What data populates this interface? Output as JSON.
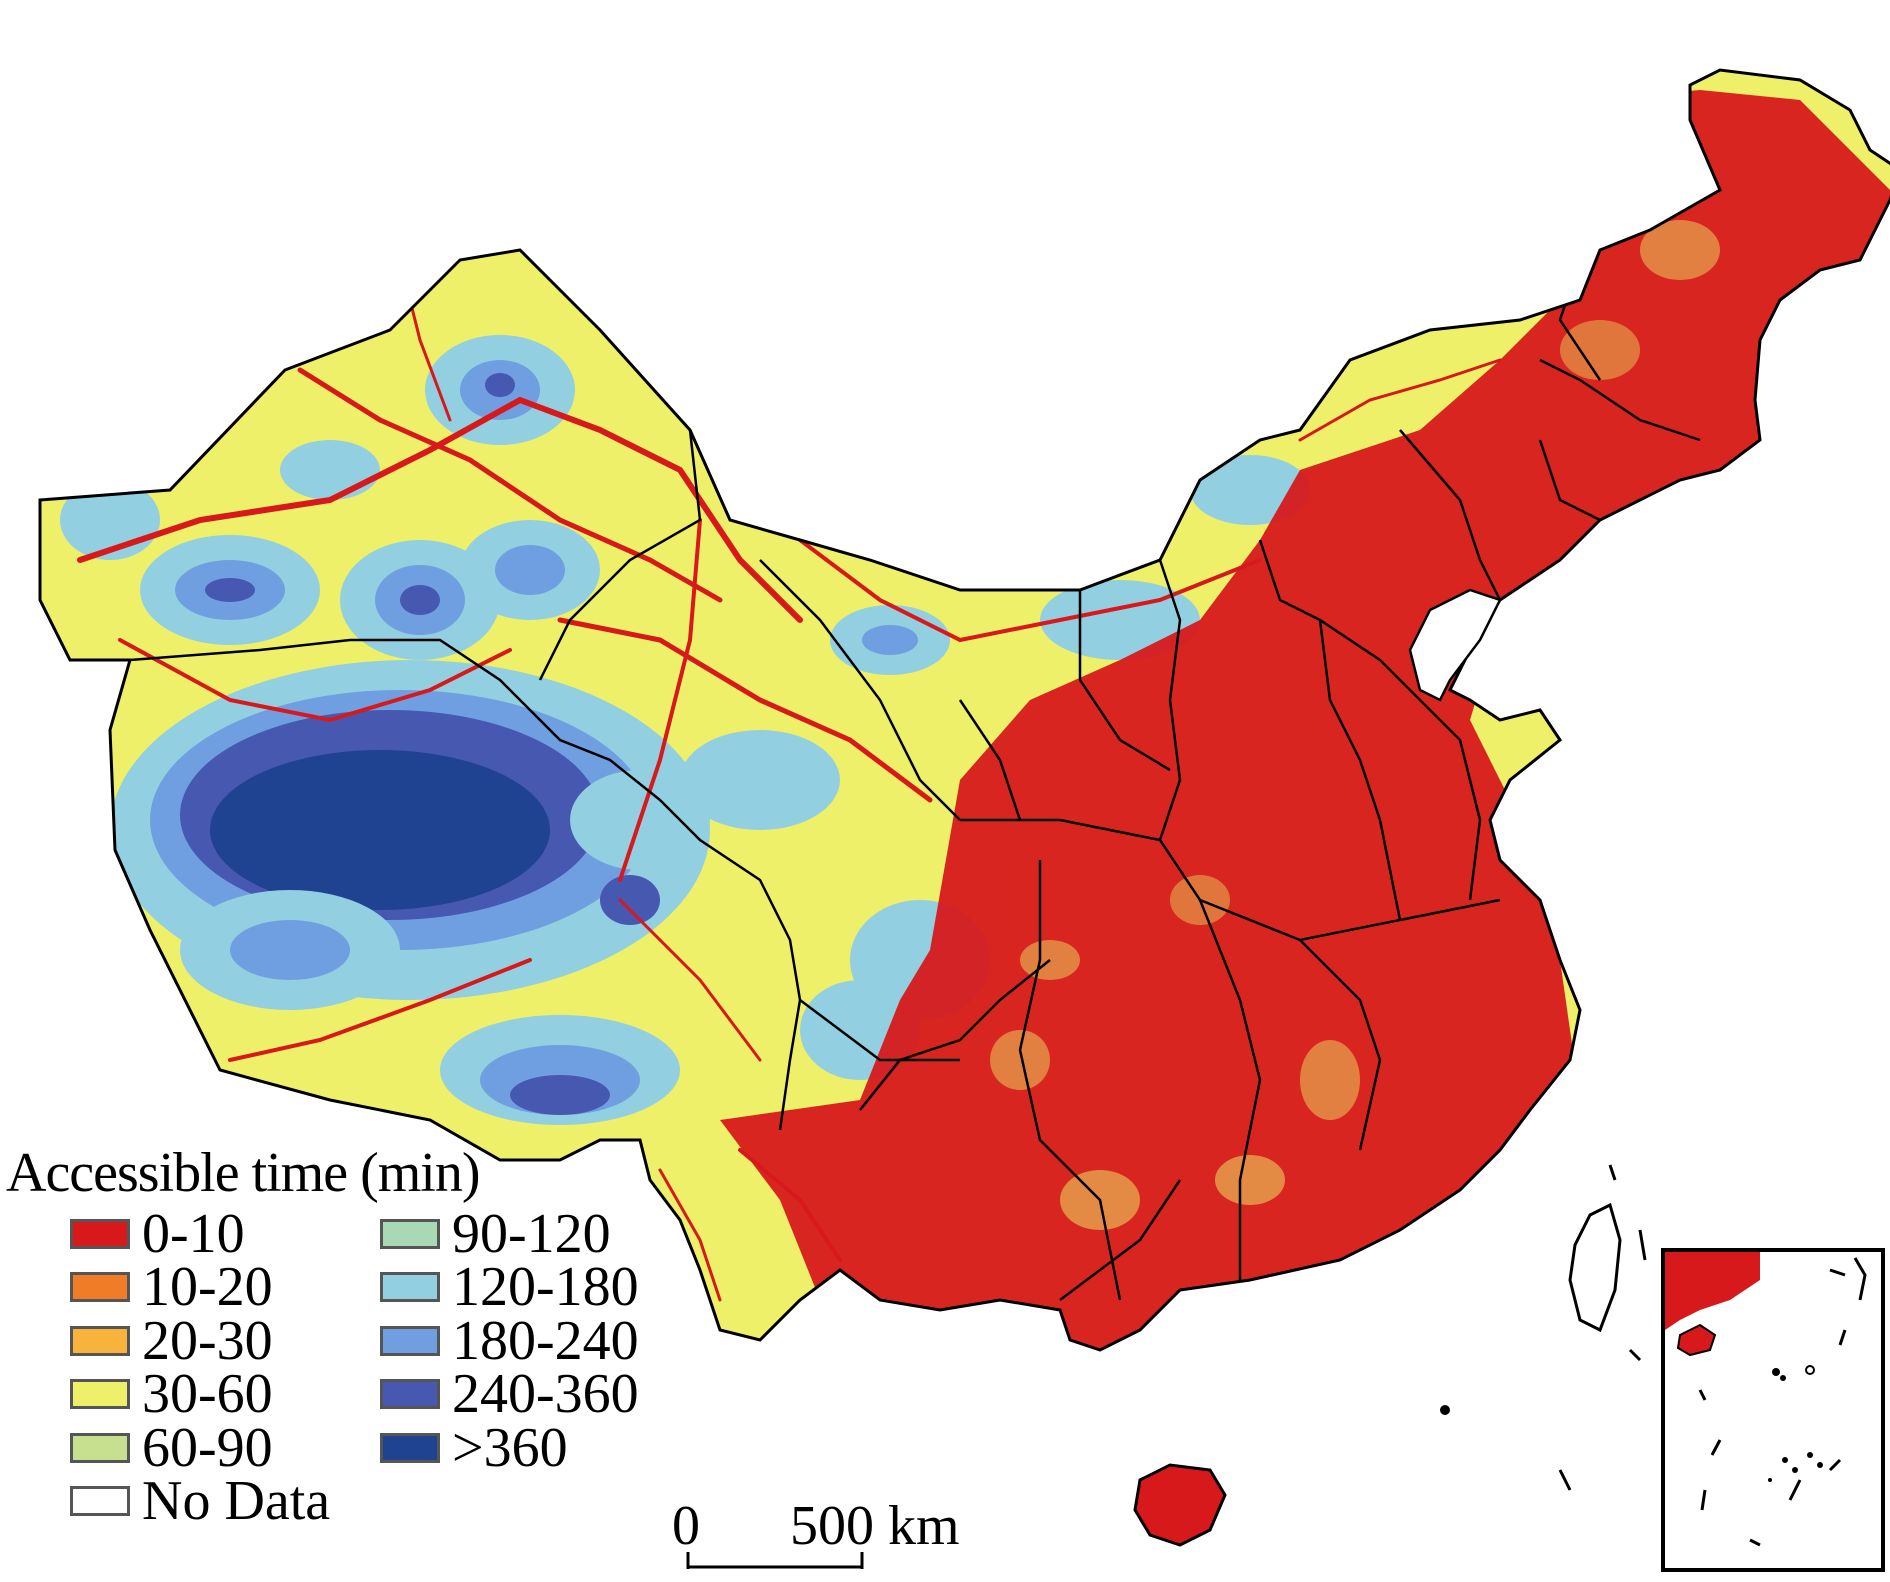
{
  "legend": {
    "title": "Accessible time (min)",
    "items": [
      {
        "label": "0-10",
        "color": "#d7191c"
      },
      {
        "label": "10-20",
        "color": "#f07c28"
      },
      {
        "label": "20-30",
        "color": "#f8b33c"
      },
      {
        "label": "30-60",
        "color": "#eef06a"
      },
      {
        "label": "60-90",
        "color": "#c6e08f"
      },
      {
        "label": "No Data",
        "color": "#ffffff"
      },
      {
        "label": "90-120",
        "color": "#a8d8b4"
      },
      {
        "label": "120-180",
        "color": "#92cfe0"
      },
      {
        "label": "180-240",
        "color": "#6f9fe0"
      },
      {
        "label": "240-360",
        "color": "#4658b0"
      },
      {
        "label": ">360",
        "color": "#1f4390"
      }
    ]
  },
  "scale_bar": {
    "start_label": "0",
    "end_label": "500 km"
  }
}
